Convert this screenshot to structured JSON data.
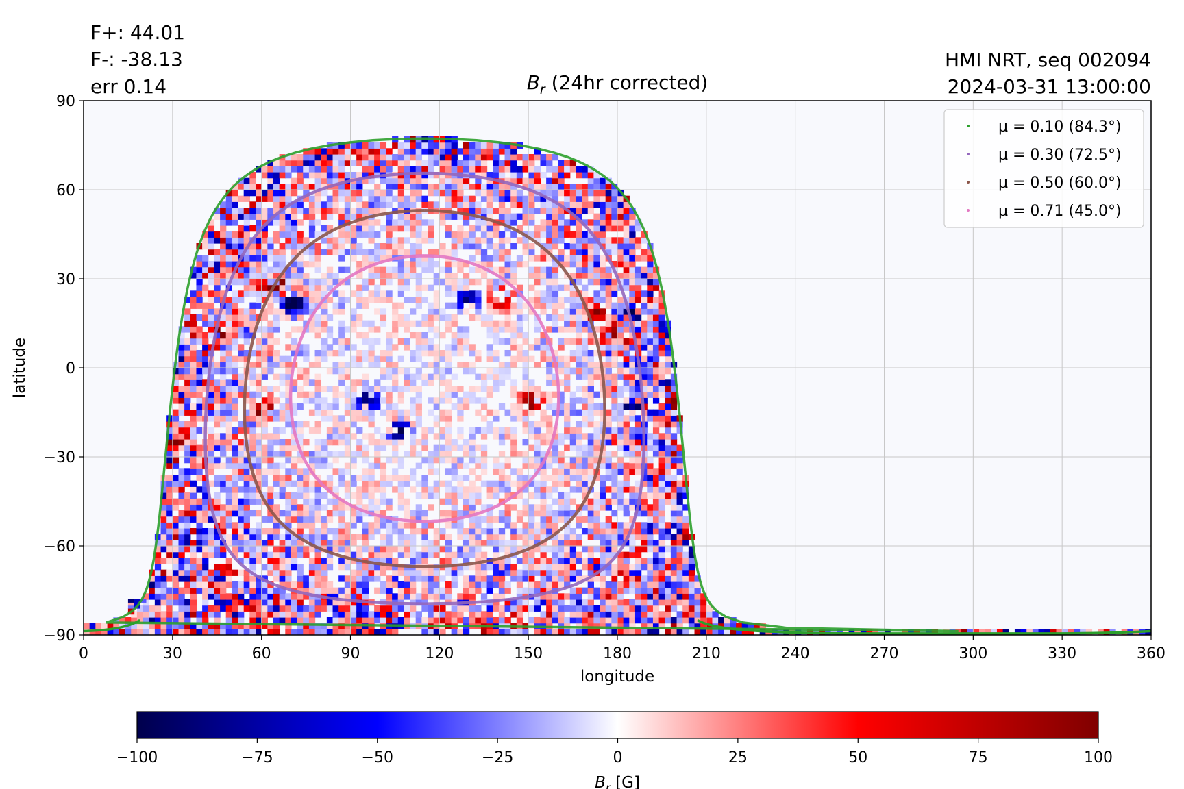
{
  "header": {
    "flux_pos": "F+: 44.01",
    "flux_neg": "F-: -38.13",
    "err": "err 0.14",
    "instrument": "HMI NRT, seq 002094",
    "datetime": "2024-03-31 13:00:00"
  },
  "chart_data": {
    "type": "heatmap",
    "title": "B_r (24hr corrected)",
    "xlabel": "longitude",
    "ylabel": "latitude",
    "xlim": [
      0,
      360
    ],
    "ylim": [
      -90,
      90
    ],
    "xticks": [
      0,
      30,
      60,
      90,
      120,
      150,
      180,
      210,
      240,
      270,
      300,
      330,
      360
    ],
    "yticks": [
      -90,
      -60,
      -30,
      0,
      30,
      60,
      90
    ],
    "grid": true,
    "legend_position": "top-right",
    "disk_center": {
      "lon": 115,
      "lat": -7
    },
    "series": [
      {
        "name": "μ = 0.10 (84.3°)",
        "mu": 0.1,
        "angle_deg": 84.3,
        "color": "#2ca02c"
      },
      {
        "name": "μ = 0.30 (72.5°)",
        "mu": 0.3,
        "angle_deg": 72.5,
        "color": "#9467bd"
      },
      {
        "name": "μ = 0.50 (60.0°)",
        "mu": 0.5,
        "angle_deg": 60.0,
        "color": "#8c564b"
      },
      {
        "name": "μ = 0.71 (45.0°)",
        "mu": 0.71,
        "angle_deg": 45.0,
        "color": "#e377c2"
      }
    ],
    "colorbar": {
      "label": "B_r [G]",
      "range": [
        -100,
        100
      ],
      "ticks": [
        -100,
        -75,
        -50,
        -25,
        0,
        25,
        50,
        75,
        100
      ],
      "tick_labels": [
        "−100",
        "−75",
        "−50",
        "−25",
        "0",
        "25",
        "50",
        "75",
        "100"
      ],
      "colormap": "seismic"
    },
    "active_regions": [
      {
        "lon": 95,
        "lat": -12,
        "sign": -1
      },
      {
        "lon": 105,
        "lat": -22,
        "sign": -1
      },
      {
        "lon": 128,
        "lat": 22,
        "sign": -1
      },
      {
        "lon": 140,
        "lat": 22,
        "sign": 1
      },
      {
        "lon": 150,
        "lat": -12,
        "sign": 1
      },
      {
        "lon": 172,
        "lat": 18,
        "sign": 1
      },
      {
        "lon": 178,
        "lat": 10,
        "sign": 1
      },
      {
        "lon": 183,
        "lat": 17,
        "sign": -1
      },
      {
        "lon": 198,
        "lat": -14,
        "sign": 1
      },
      {
        "lon": 185,
        "lat": -14,
        "sign": -1
      },
      {
        "lon": 60,
        "lat": -15,
        "sign": 1
      },
      {
        "lon": 45,
        "lat": 10,
        "sign": 1
      },
      {
        "lon": 30,
        "lat": -24,
        "sign": 1
      },
      {
        "lon": 70,
        "lat": 20,
        "sign": -1
      },
      {
        "lon": 63,
        "lat": 27,
        "sign": 1
      }
    ]
  }
}
